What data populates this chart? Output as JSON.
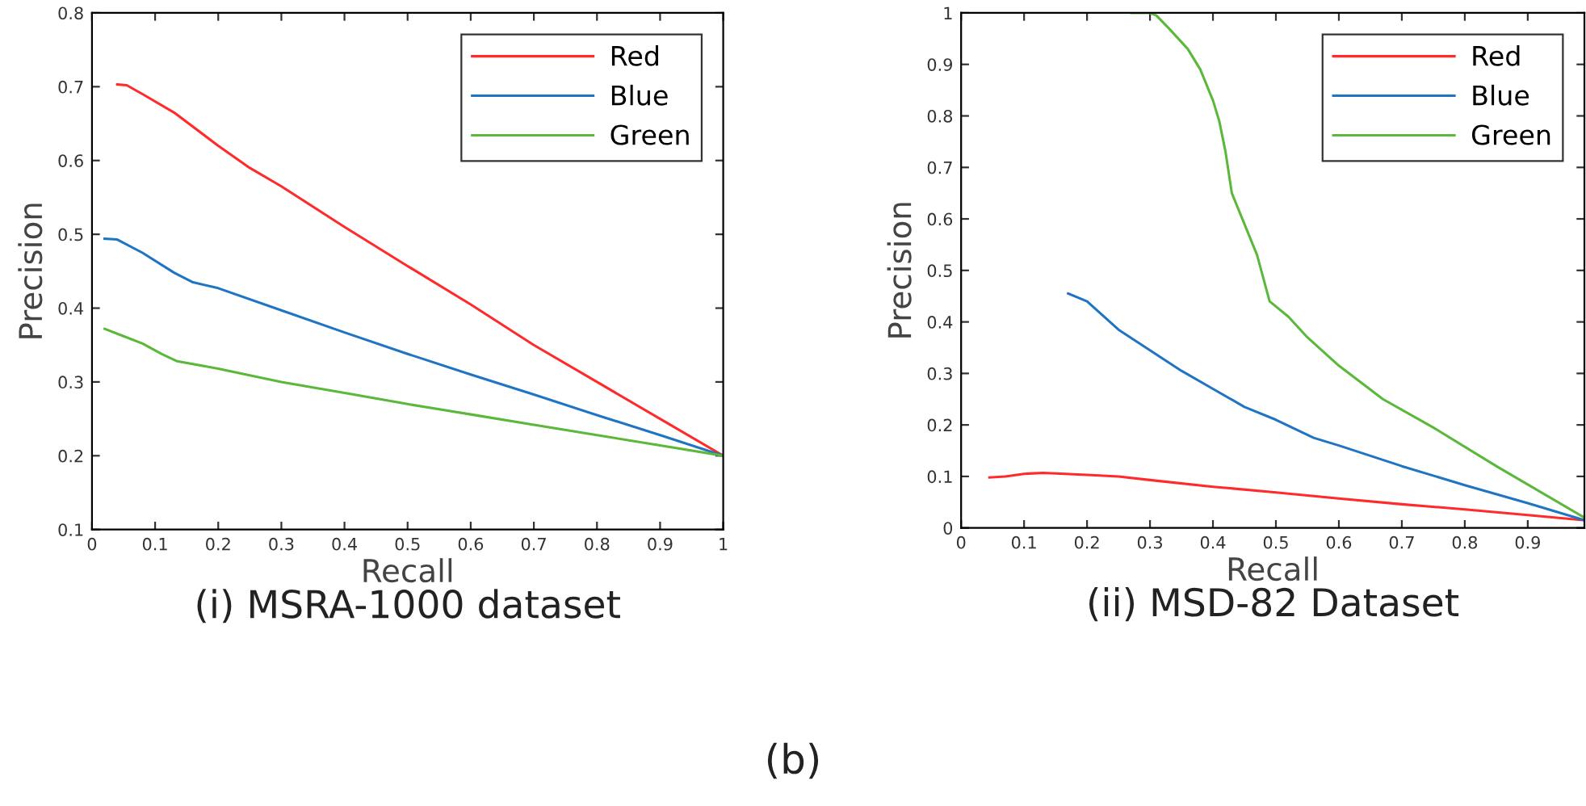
{
  "chart_data": [
    {
      "type": "line",
      "title": "(i) MSRA-1000 dataset",
      "xlabel": "Recall",
      "ylabel": "Precision",
      "xlim": [
        0,
        1
      ],
      "ylim": [
        0.1,
        0.8
      ],
      "xticks": [
        0,
        0.1,
        0.2,
        0.3,
        0.4,
        0.5,
        0.6,
        0.7,
        0.8,
        0.9,
        1
      ],
      "yticks": [
        0.1,
        0.2,
        0.3,
        0.4,
        0.5,
        0.6,
        0.7,
        0.8
      ],
      "grid": false,
      "legend": "top right",
      "annotations": [
        "(b)"
      ],
      "series": [
        {
          "name": "Red",
          "color": "#ff2a2a",
          "x": [
            0.04,
            0.055,
            0.08,
            0.13,
            0.2,
            0.25,
            0.3,
            0.4,
            0.5,
            0.6,
            0.7,
            0.8,
            0.9,
            1.0
          ],
          "values": [
            0.703,
            0.702,
            0.69,
            0.665,
            0.62,
            0.59,
            0.565,
            0.51,
            0.457,
            0.405,
            0.35,
            0.3,
            0.25,
            0.2
          ]
        },
        {
          "name": "Blue",
          "color": "#1f74c4",
          "x": [
            0.02,
            0.04,
            0.08,
            0.13,
            0.16,
            0.2,
            0.3,
            0.4,
            0.5,
            0.6,
            0.7,
            0.8,
            0.9,
            1.0
          ],
          "values": [
            0.494,
            0.493,
            0.475,
            0.448,
            0.435,
            0.427,
            0.397,
            0.367,
            0.338,
            0.31,
            0.283,
            0.255,
            0.228,
            0.2
          ]
        },
        {
          "name": "Green",
          "color": "#5cb83a",
          "x": [
            0.02,
            0.05,
            0.08,
            0.11,
            0.135,
            0.2,
            0.3,
            0.4,
            0.5,
            0.6,
            0.7,
            0.8,
            0.9,
            1.0
          ],
          "values": [
            0.372,
            0.362,
            0.352,
            0.338,
            0.328,
            0.318,
            0.3,
            0.285,
            0.27,
            0.256,
            0.242,
            0.228,
            0.214,
            0.2
          ]
        }
      ]
    },
    {
      "type": "line",
      "title": "(ii) MSD-82 Dataset",
      "xlabel": "Recall",
      "ylabel": "Precision",
      "xlim": [
        0,
        0.99
      ],
      "ylim": [
        0,
        1
      ],
      "xticks": [
        0,
        0.1,
        0.2,
        0.3,
        0.4,
        0.5,
        0.6,
        0.7,
        0.8,
        0.9
      ],
      "yticks": [
        0,
        0.1,
        0.2,
        0.3,
        0.4,
        0.5,
        0.6,
        0.7,
        0.8,
        0.9,
        1
      ],
      "grid": false,
      "legend": "top right",
      "series": [
        {
          "name": "Red",
          "color": "#ff2a2a",
          "x": [
            0.045,
            0.07,
            0.1,
            0.13,
            0.2,
            0.25,
            0.3,
            0.4,
            0.5,
            0.6,
            0.7,
            0.8,
            0.9,
            0.99
          ],
          "values": [
            0.098,
            0.1,
            0.105,
            0.107,
            0.103,
            0.1,
            0.093,
            0.08,
            0.069,
            0.057,
            0.046,
            0.036,
            0.025,
            0.015
          ]
        },
        {
          "name": "Blue",
          "color": "#1f74c4",
          "x": [
            0.17,
            0.2,
            0.25,
            0.3,
            0.35,
            0.4,
            0.45,
            0.5,
            0.56,
            0.6,
            0.7,
            0.8,
            0.9,
            0.99
          ],
          "values": [
            0.455,
            0.44,
            0.385,
            0.345,
            0.305,
            0.27,
            0.235,
            0.21,
            0.175,
            0.16,
            0.12,
            0.083,
            0.048,
            0.015
          ]
        },
        {
          "name": "Green",
          "color": "#5cb83a",
          "x": [
            0.27,
            0.3,
            0.31,
            0.33,
            0.36,
            0.38,
            0.4,
            0.41,
            0.42,
            0.43,
            0.45,
            0.47,
            0.49,
            0.52,
            0.55,
            0.6,
            0.67,
            0.75,
            0.85,
            0.99
          ],
          "values": [
            1.0,
            1.0,
            0.995,
            0.97,
            0.93,
            0.89,
            0.83,
            0.79,
            0.73,
            0.65,
            0.59,
            0.53,
            0.44,
            0.41,
            0.37,
            0.315,
            0.25,
            0.195,
            0.12,
            0.02
          ]
        }
      ]
    }
  ]
}
